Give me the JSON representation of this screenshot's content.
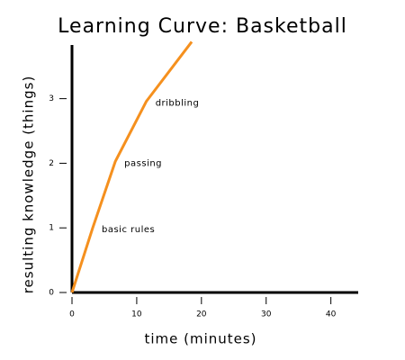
{
  "chart_data": {
    "type": "line",
    "title": "Learning Curve: Basketball",
    "x_label": "time (minutes)",
    "y_label": "resulting knowledge (things)",
    "x": [
      0,
      3.2,
      6.7,
      11.5,
      18.5
    ],
    "series": [
      {
        "color": "#f5901e",
        "values": [
          0,
          1,
          2.03,
          2.96,
          3.88
        ]
      }
    ],
    "annotations": [
      {
        "text": "basic rules",
        "x": 3.2,
        "y": 1
      },
      {
        "text": "passing",
        "x": 6.7,
        "y": 2.03
      },
      {
        "text": "dribbling",
        "x": 11.5,
        "y": 2.96
      }
    ],
    "xlim": [
      0,
      44.5
    ],
    "ylim": [
      0,
      3.9
    ],
    "xticks": [
      0,
      10,
      20,
      30,
      40
    ],
    "yticks": [
      0,
      1,
      2,
      3
    ]
  }
}
